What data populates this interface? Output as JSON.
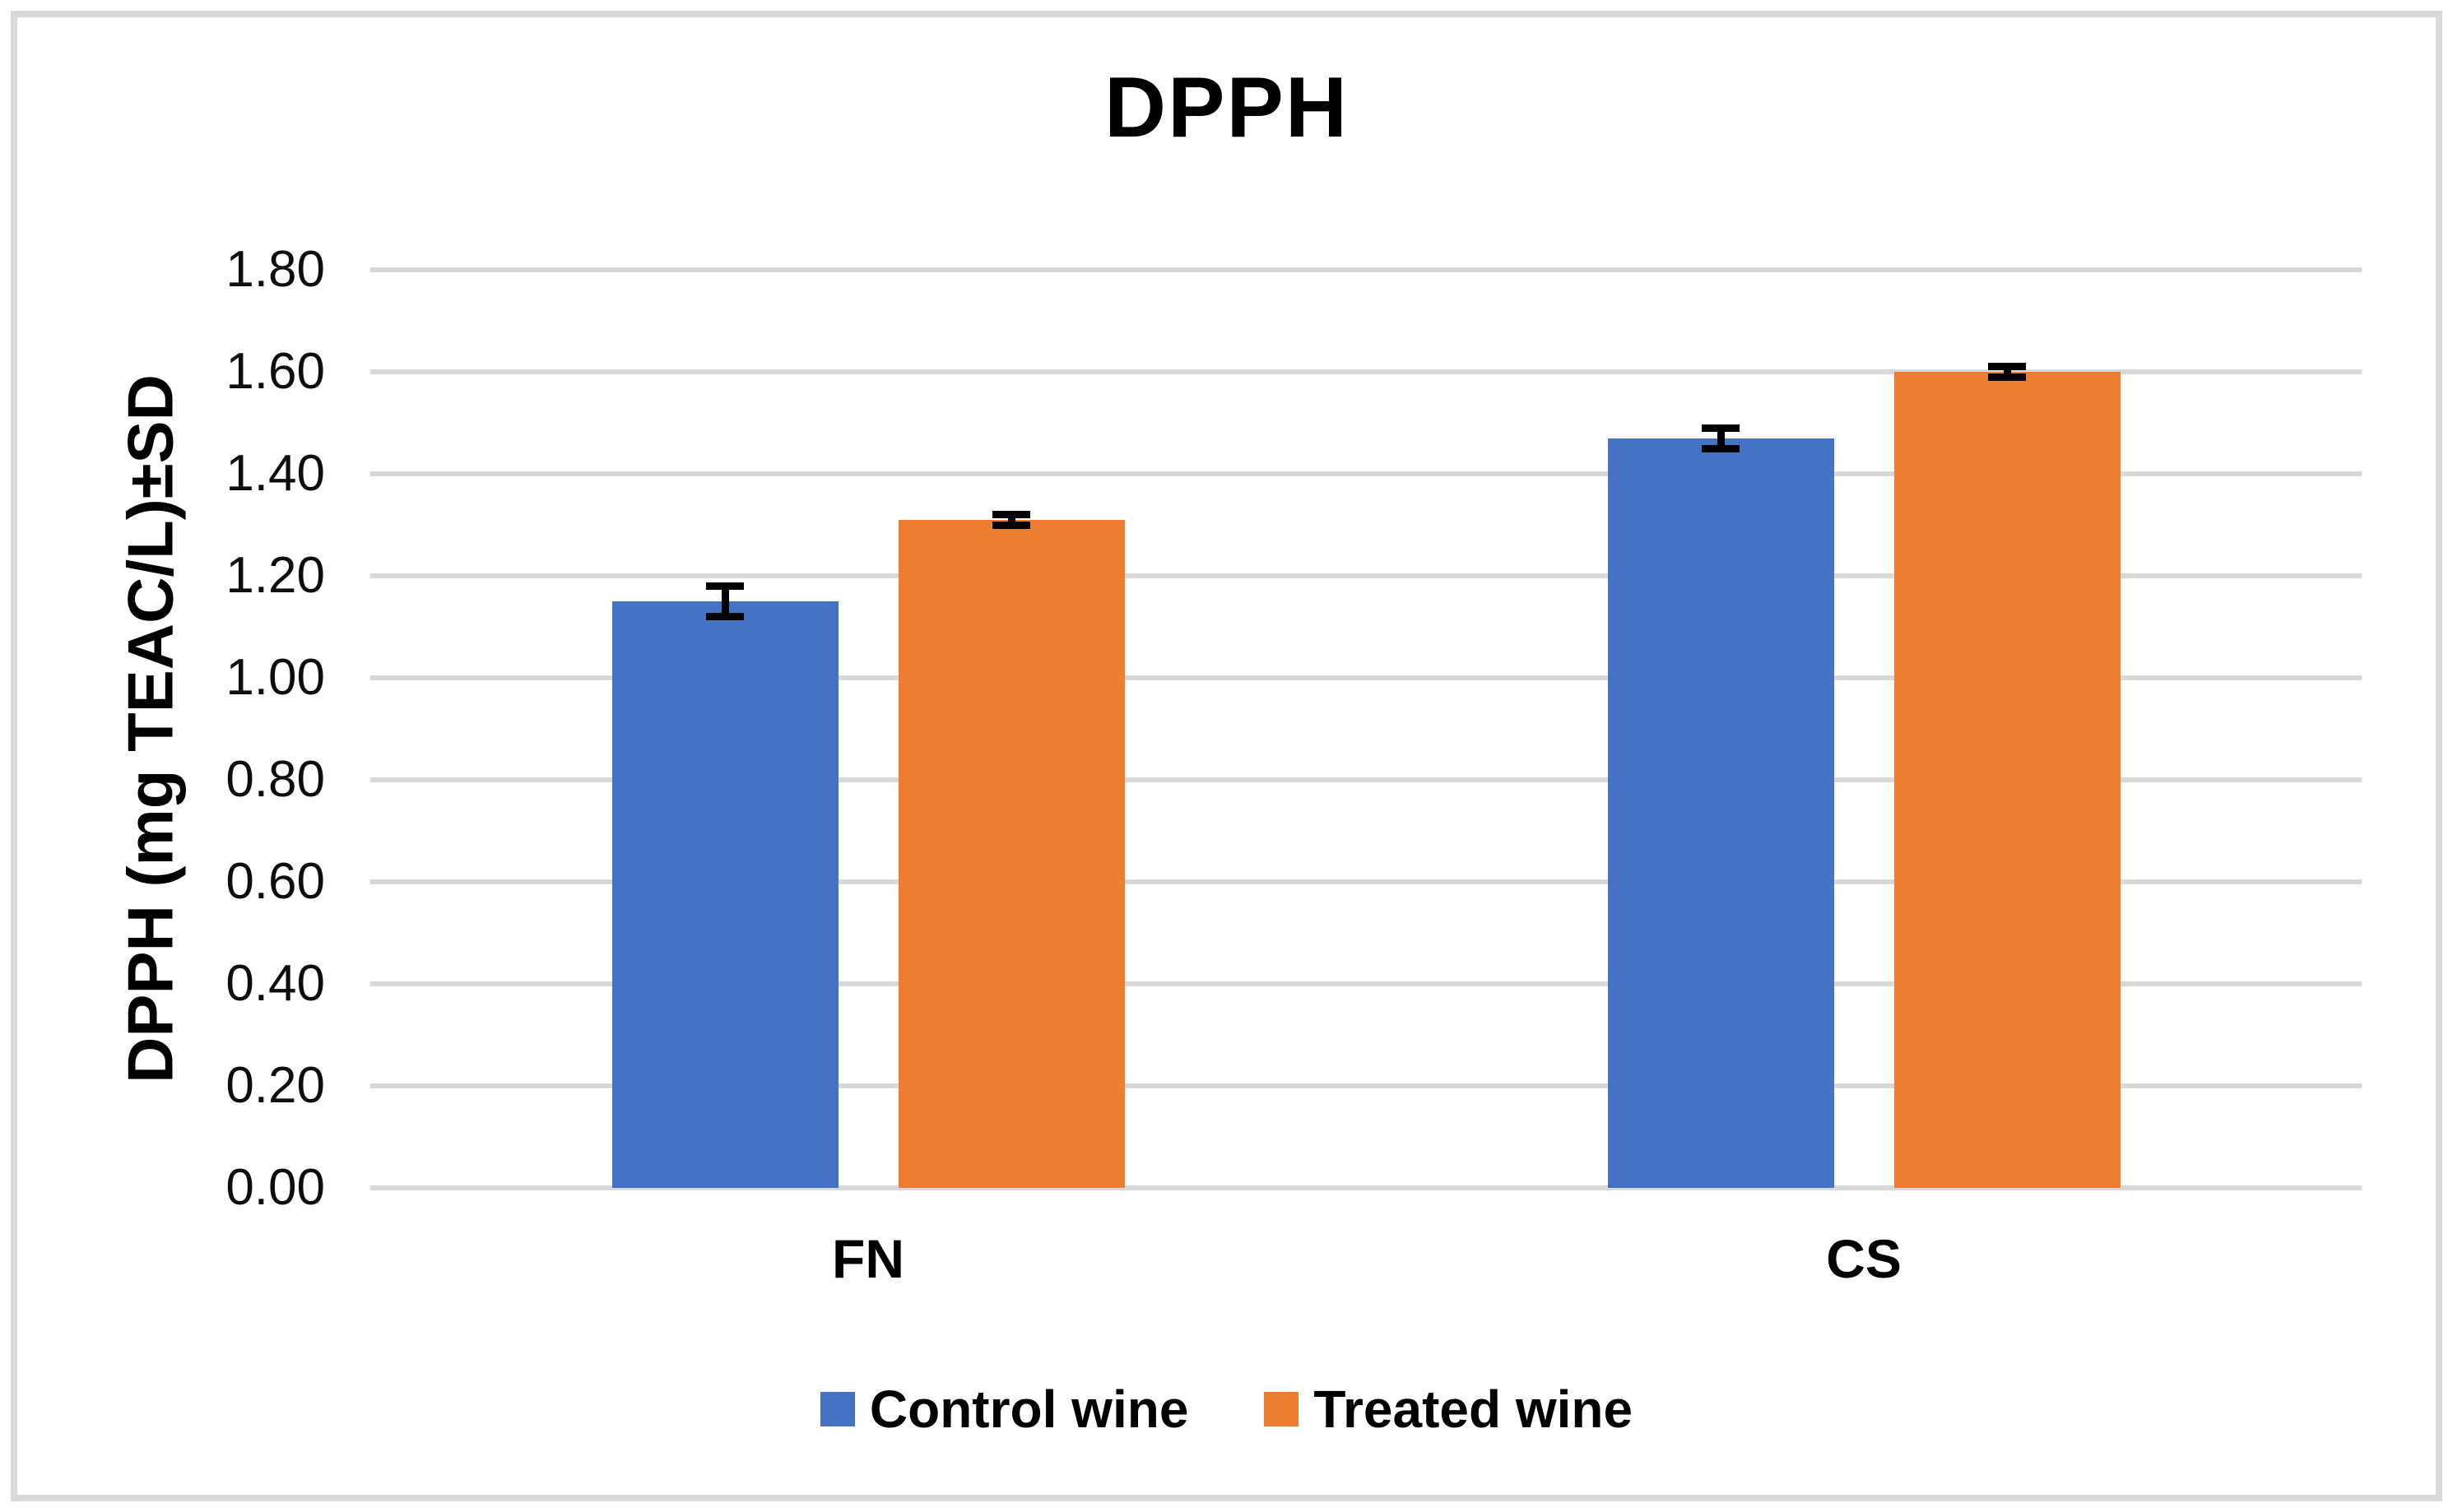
{
  "figure": {
    "title": "DPPH",
    "background_color": "#ffffff",
    "frame_color": "#d9d9d9"
  },
  "chart_data": {
    "type": "bar",
    "title": "DPPH",
    "categories": [
      "FN",
      "CS"
    ],
    "series": [
      {
        "name": "Control wine",
        "color": "#4472C4",
        "values": [
          1.15,
          1.47
        ],
        "errors": [
          0.03,
          0.02
        ]
      },
      {
        "name": "Treated wine",
        "color": "#ED7D31",
        "values": [
          1.31,
          1.6
        ],
        "errors": [
          0.01,
          0.01
        ]
      }
    ],
    "xlabel": "",
    "ylabel": "DPPH (mg TEAC/L)±SD",
    "ylim": [
      0,
      1.8
    ],
    "ytick_step": 0.2,
    "ytick_decimals": 2,
    "grid": "horizontal",
    "gridline_color": "#d9d9d9",
    "error_bar_color": "#000000",
    "legend_position": "bottom"
  }
}
